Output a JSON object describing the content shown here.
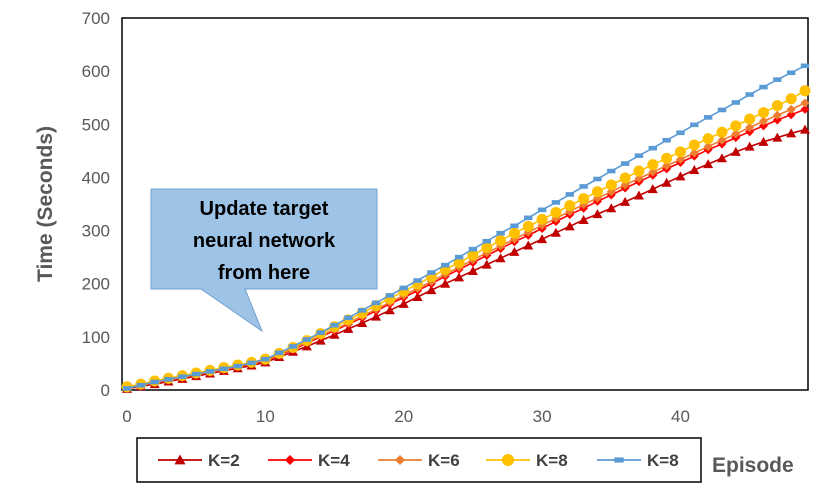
{
  "chart_data": {
    "type": "line",
    "title": "",
    "xlabel": "Episode",
    "ylabel": "Time (Seconds)",
    "xlim": [
      0,
      49
    ],
    "ylim": [
      0,
      700
    ],
    "xticks": [
      0,
      10,
      20,
      30,
      40
    ],
    "yticks": [
      0,
      100,
      200,
      300,
      400,
      500,
      600,
      700
    ],
    "grid": false,
    "legend_position": "bottom",
    "annotation": {
      "lines": [
        "Update target",
        "neural network",
        "from here"
      ],
      "points_to_episode": 10
    },
    "x": [
      0,
      1,
      2,
      3,
      4,
      5,
      6,
      7,
      8,
      9,
      10,
      11,
      12,
      13,
      14,
      15,
      16,
      17,
      18,
      19,
      20,
      21,
      22,
      23,
      24,
      25,
      26,
      27,
      28,
      29,
      30,
      31,
      32,
      33,
      34,
      35,
      36,
      37,
      38,
      39,
      40,
      41,
      42,
      43,
      44,
      45,
      46,
      47,
      48,
      49
    ],
    "series": [
      {
        "name": "K=2",
        "color": "#C00000",
        "marker": "triangle",
        "values": [
          2,
          7,
          11,
          16,
          21,
          26,
          31,
          36,
          41,
          46,
          52,
          62,
          72,
          82,
          93,
          104,
          115,
          126,
          138,
          150,
          162,
          175,
          188,
          200,
          212,
          224,
          236,
          248,
          260,
          272,
          284,
          296,
          308,
          320,
          331,
          342,
          354,
          366,
          378,
          390,
          402,
          414,
          425,
          436,
          448,
          458,
          467,
          475,
          483,
          490
        ]
      },
      {
        "name": "K=4",
        "color": "#FF0000",
        "marker": "diamond",
        "values": [
          3,
          8,
          13,
          18,
          23,
          28,
          33,
          38,
          43,
          49,
          55,
          66,
          76,
          88,
          100,
          112,
          124,
          136,
          149,
          162,
          174,
          187,
          200,
          214,
          227,
          240,
          253,
          266,
          279,
          291,
          304,
          317,
          330,
          342,
          355,
          367,
          380,
          392,
          404,
          416,
          428,
          440,
          452,
          463,
          475,
          486,
          497,
          508,
          518,
          528
        ]
      },
      {
        "name": "K=6",
        "color": "#ED7D31",
        "marker": "diamond",
        "values": [
          4,
          9,
          14,
          19,
          24,
          29,
          34,
          39,
          44,
          50,
          56,
          67,
          78,
          90,
          102,
          114,
          126,
          139,
          152,
          165,
          178,
          191,
          204,
          218,
          231,
          245,
          258,
          271,
          284,
          297,
          310,
          323,
          336,
          349,
          361,
          373,
          386,
          398,
          410,
          422,
          434,
          446,
          458,
          470,
          482,
          494,
          506,
          517,
          528,
          540
        ]
      },
      {
        "name": "K=8",
        "color": "#FFC000",
        "marker": "circle",
        "values": [
          6,
          11,
          17,
          22,
          27,
          32,
          37,
          42,
          47,
          52,
          58,
          69,
          80,
          93,
          106,
          119,
          132,
          145,
          159,
          172,
          186,
          199,
          213,
          227,
          240,
          254,
          268,
          281,
          295,
          308,
          321,
          334,
          347,
          360,
          373,
          386,
          399,
          412,
          424,
          436,
          448,
          461,
          473,
          485,
          497,
          510,
          522,
          535,
          548,
          563
        ]
      },
      {
        "name": "K=8",
        "color": "#5B9BD5",
        "marker": "square",
        "values": [
          3,
          9,
          15,
          20,
          25,
          30,
          35,
          40,
          45,
          51,
          58,
          70,
          82,
          95,
          108,
          122,
          136,
          150,
          164,
          178,
          192,
          206,
          221,
          235,
          250,
          265,
          280,
          295,
          309,
          324,
          339,
          353,
          368,
          383,
          397,
          412,
          426,
          441,
          455,
          470,
          484,
          499,
          513,
          527,
          541,
          556,
          570,
          584,
          597,
          610
        ]
      }
    ]
  }
}
